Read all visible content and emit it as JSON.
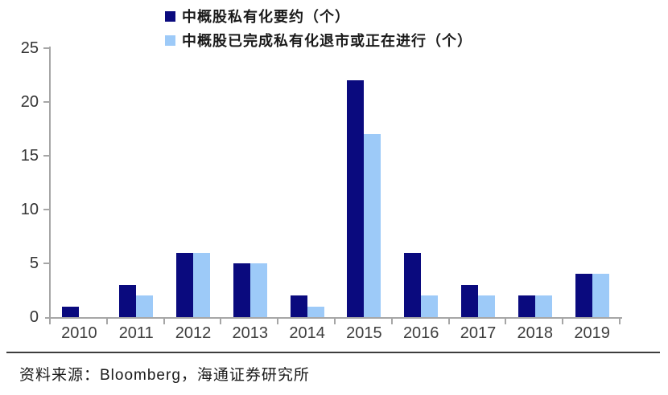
{
  "chart_data": {
    "type": "bar",
    "title": "",
    "xlabel": "",
    "ylabel": "",
    "categories": [
      "2010",
      "2011",
      "2012",
      "2013",
      "2014",
      "2015",
      "2016",
      "2017",
      "2018",
      "2019"
    ],
    "series": [
      {
        "key": "offers",
        "name": "中概股私有化要约（个）",
        "color": "#0A0A7E",
        "values": [
          1,
          3,
          6,
          5,
          2,
          22,
          6,
          3,
          2,
          4
        ]
      },
      {
        "key": "completed",
        "name": "中概股已完成私有化退市或正在进行（个）",
        "color": "#9DCAF8",
        "values": [
          0,
          2,
          6,
          5,
          1,
          17,
          2,
          2,
          2,
          4
        ]
      }
    ],
    "ylim": [
      0,
      25
    ],
    "yticks": [
      0,
      5,
      10,
      15,
      20,
      25
    ],
    "grid": false,
    "legend_position": "top"
  },
  "footer": {
    "source": "资料来源：Bloomberg，海通证券研究所"
  },
  "colors": {
    "series_dark": "#0A0A7E",
    "series_light": "#9DCAF8",
    "axis": "#A6A6A6"
  }
}
